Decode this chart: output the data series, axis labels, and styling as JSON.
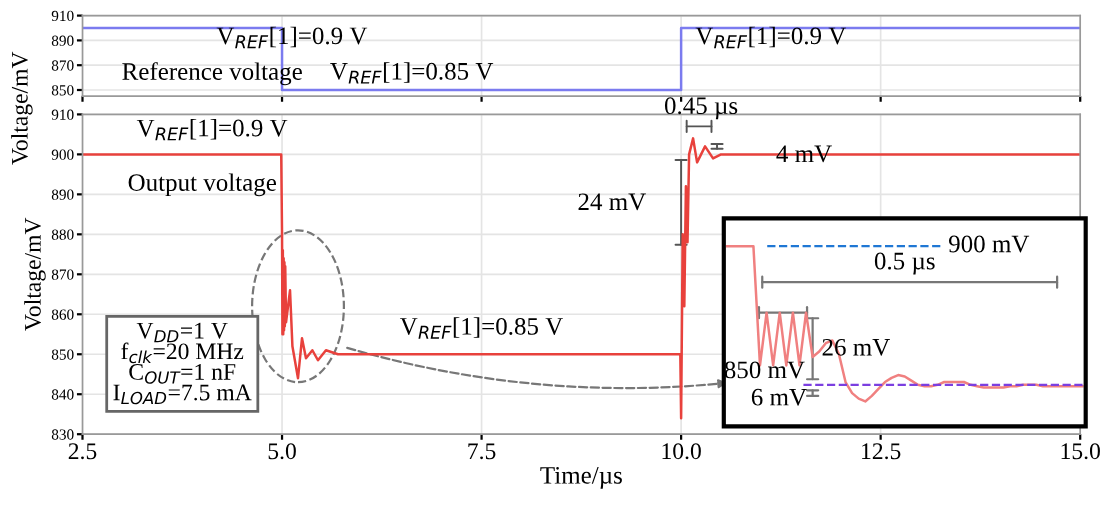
{
  "chart_data": [
    {
      "type": "line",
      "ylabel": "Voltage/mV",
      "xlim": [
        2.5,
        15
      ],
      "ylim": [
        845,
        910
      ],
      "yticks": [
        850,
        870,
        890,
        910
      ],
      "tick_labels": "y",
      "grid": true,
      "series": [
        {
          "color": "#7b7bef",
          "x": [
            2.5,
            5.0,
            5.0,
            10.0,
            10.0,
            15.0
          ],
          "values": [
            900,
            900,
            850,
            850,
            900,
            900
          ]
        }
      ],
      "annotations": [
        "V$_{REF}$[1]=0.9 V",
        "Reference voltage",
        "V$_{REF}$[1]=0.85 V",
        "V$_{REF}$[1]=0.9 V"
      ]
    },
    {
      "type": "line",
      "ylabel": "Voltage/mV",
      "xlabel": "Time/µs",
      "xlim": [
        2.5,
        15
      ],
      "ylim": [
        830,
        910
      ],
      "yticks": [
        830,
        840,
        850,
        860,
        870,
        880,
        890,
        900,
        910
      ],
      "xticks": [
        {
          "value": 2.5,
          "label": "2.5"
        },
        {
          "value": 5,
          "label": "5.0"
        },
        {
          "value": 7.5,
          "label": "7.5"
        },
        {
          "value": 10,
          "label": "10.0"
        },
        {
          "value": 12.5,
          "label": "12.5"
        },
        {
          "value": 15,
          "label": "15.0"
        }
      ],
      "grid": true,
      "series": [
        {
          "color": "#e8413c",
          "x": [
            2.5,
            4.99,
            5.0,
            5.005,
            5.01,
            5.015,
            5.02,
            5.025,
            5.03,
            5.035,
            5.04,
            5.05,
            5.1,
            5.13,
            5.2,
            5.25,
            5.3,
            5.38,
            5.45,
            5.55,
            5.7,
            9.99,
            10.0,
            10.02,
            10.04,
            10.06,
            10.08,
            10.1,
            10.15,
            10.2,
            10.3,
            10.4,
            10.5,
            15.0
          ],
          "values": [
            900,
            900,
            880,
            855,
            876,
            855,
            874,
            856,
            873,
            857,
            872,
            858,
            866,
            852,
            844,
            854,
            849,
            851,
            848.5,
            851,
            850,
            850,
            834,
            880,
            862,
            892,
            878,
            900,
            904,
            898,
            902,
            899,
            900,
            900
          ]
        }
      ],
      "annotations": [
        "V$_{REF}$[1]=0.9 V",
        "Output voltage",
        "V$_{REF}$[1]=0.85 V",
        "0.45 µs",
        "4 mV",
        "24 mV",
        "V$_{DD}$=1 V\nf$_{clk}$=20 MHz\nC$_{OUT}$=1 nF\nI$_{LOAD}$=7.5 mA"
      ]
    },
    {
      "type": "line",
      "ylim": [
        835,
        910
      ],
      "tick_labels": false,
      "categories": [
        null,
        null,
        null,
        null,
        null,
        null,
        null,
        null,
        null,
        null,
        null,
        null,
        null,
        null,
        null,
        null,
        null,
        null,
        null,
        null,
        null,
        null,
        null,
        null,
        null,
        null,
        null,
        null,
        null,
        null,
        null,
        null,
        null,
        null,
        null,
        null,
        null,
        null,
        null,
        null,
        null,
        null,
        null,
        null,
        null,
        null,
        null,
        null,
        null,
        null,
        null,
        null,
        null,
        null,
        null
      ],
      "series": [
        {
          "color": "#f08080",
          "values": [
            900,
            900,
            900,
            900,
            900,
            857,
            876,
            857,
            876,
            857,
            876,
            857,
            876,
            860,
            862,
            865,
            866,
            861,
            851,
            847,
            845,
            844,
            846,
            848.5,
            851,
            852.5,
            853.5,
            853,
            851.5,
            850,
            849.5,
            849.5,
            850,
            851,
            851,
            851,
            851,
            850,
            849.5,
            849,
            849,
            849,
            849,
            849.5,
            849.5,
            850,
            850,
            850,
            849.5,
            849.5,
            849.5,
            849.5,
            849.5,
            849.5,
            849.5
          ]
        }
      ],
      "ref_lines": [
        {
          "axis": "y",
          "value": 900,
          "label": "900 mV",
          "color": "#1f77d4",
          "line_style": "dashed"
        },
        {
          "axis": "y",
          "value": 850,
          "label": "850 mV",
          "color": "#7b3fe0",
          "line_style": "dashed"
        }
      ],
      "annotations": [
        "0.5 µs",
        "26 mV",
        "6 mV"
      ]
    }
  ]
}
